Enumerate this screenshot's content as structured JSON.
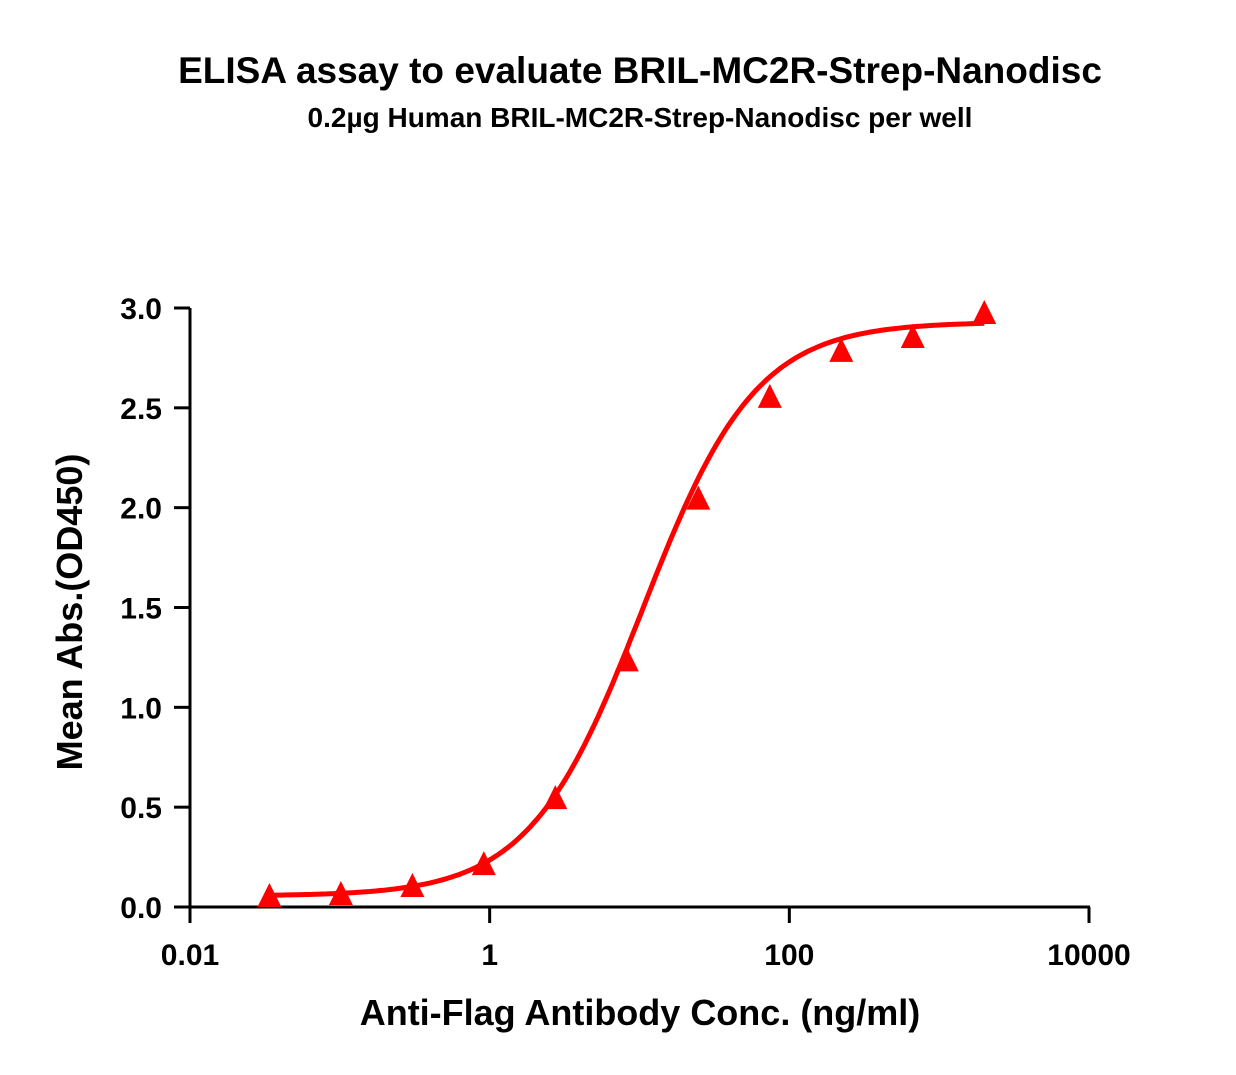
{
  "chart_data": {
    "type": "scatter",
    "title": "ELISA assay to evaluate BRIL-MC2R-Strep-Nanodisc",
    "subtitle": "0.2µg Human BRIL-MC2R-Strep-Nanodisc per well",
    "xlabel": "Anti-Flag Antibody Conc. (ng/ml)",
    "ylabel": "Mean Abs.(OD450)",
    "xscale": "log",
    "xlim": [
      0.01,
      10000
    ],
    "ylim": [
      0,
      3.0
    ],
    "xticks": [
      "0.01",
      "1",
      "100",
      "10000"
    ],
    "yticks": [
      "0.0",
      "0.5",
      "1.0",
      "1.5",
      "2.0",
      "2.5",
      "3.0"
    ],
    "grid": false,
    "marker": "triangle",
    "fit_curve": "sigmoidal (4PL)",
    "color": "#ff0000",
    "x": [
      0.0339,
      0.1016,
      0.305,
      0.914,
      2.743,
      8.23,
      24.69,
      74.07,
      222.2,
      666.7,
      2000
    ],
    "y": [
      0.05,
      0.06,
      0.1,
      0.21,
      0.54,
      1.23,
      2.04,
      2.55,
      2.78,
      2.85,
      2.97
    ]
  }
}
